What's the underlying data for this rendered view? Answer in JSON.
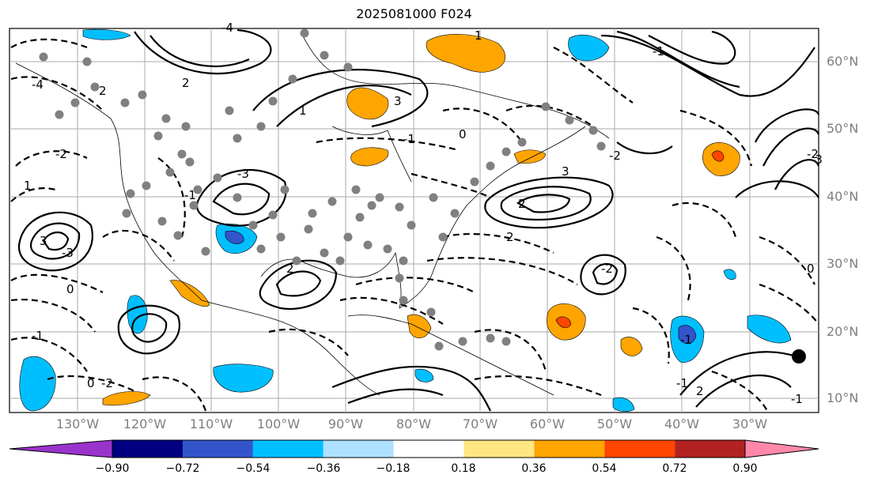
{
  "title": "2025081000 F024",
  "lat_labels": [
    "60°N",
    "50°N",
    "40°N",
    "30°N",
    "20°N",
    "10°N"
  ],
  "lon_labels": [
    "130°W",
    "120°W",
    "110°W",
    "100°W",
    "90°W",
    "80°W",
    "70°W",
    "60°W",
    "50°W",
    "40°W",
    "30°W"
  ],
  "colorbar": {
    "ticks": [
      "−0.90",
      "−0.72",
      "−0.54",
      "−0.36",
      "−0.18",
      "0.18",
      "0.36",
      "0.54",
      "0.72",
      "0.90"
    ],
    "colors": [
      "#9933cc",
      "#000080",
      "#3355cc",
      "#00bfff",
      "#aee0ff",
      "#ffffff",
      "#ffe680",
      "#ffa500",
      "#ff4500",
      "#b22222",
      "#ff88aa"
    ]
  },
  "contour_labels": [
    "-4",
    "-3",
    "3",
    "-2",
    "2",
    "-1",
    "1",
    "0",
    "0",
    "-2",
    "-1",
    "-3",
    "2",
    "3",
    "-1",
    "1",
    "-4",
    "2",
    "3",
    "-2",
    "-1",
    "-2",
    "0",
    "1",
    "2",
    "-1",
    "0",
    "-1",
    "-2",
    "2",
    "-3",
    "-1",
    "2"
  ],
  "colors": {
    "land_outline": "#000000",
    "grid": "#aaaaaa",
    "dots": "#808080",
    "axis_label": "#7f7f7f"
  }
}
